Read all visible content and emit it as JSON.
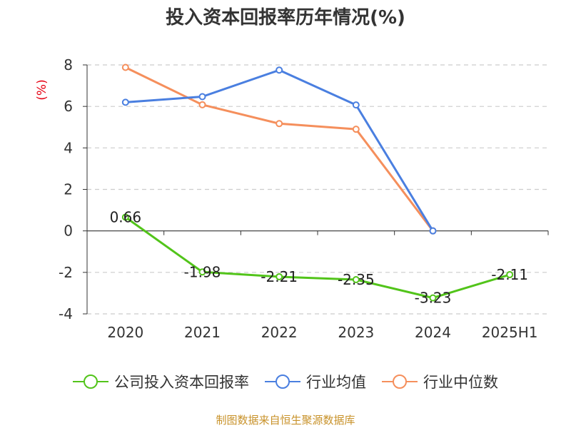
{
  "title": "投入资本回报率历年情况(%)",
  "footer": "制图数据来自恒生聚源数据库",
  "colors": {
    "series1": "#52c41a",
    "series2": "#4a7fe0",
    "series3": "#f58f5c",
    "unit": "#e60012",
    "footer": "#c8922a"
  },
  "chart_data": {
    "type": "line",
    "title": "投入资本回报率历年情况(%)",
    "ylabel": "(%)",
    "categories": [
      "2020",
      "2021",
      "2022",
      "2023",
      "2024",
      "2025H1"
    ],
    "ylim": [
      -4,
      8
    ],
    "yticks": [
      -4,
      -2,
      0,
      2,
      4,
      6,
      8
    ],
    "grid": true,
    "legend_position": "bottom",
    "series": [
      {
        "name": "公司投入资本回报率",
        "values": [
          0.66,
          -1.98,
          -2.21,
          -2.35,
          -3.23,
          -2.11
        ],
        "labels": [
          "0.66",
          "-1.98",
          "-2.21",
          "-2.35",
          "-3.23",
          "-2.11"
        ]
      },
      {
        "name": "行业均值",
        "values": [
          6.2,
          6.47,
          7.75,
          6.07,
          0.0,
          null
        ]
      },
      {
        "name": "行业中位数",
        "values": [
          7.88,
          6.08,
          5.17,
          4.9,
          0.0,
          null
        ]
      }
    ]
  }
}
